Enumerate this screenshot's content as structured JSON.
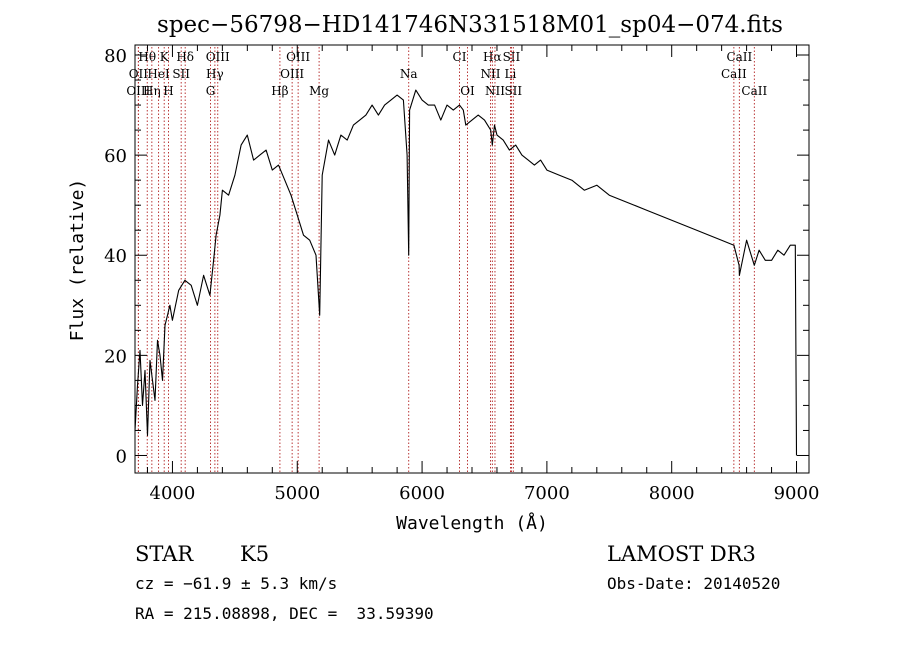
{
  "chart_data": {
    "type": "line",
    "title": "spec−56798−HD141746N331518M01_sp04−074.fits",
    "xlabel": "Wavelength (Å)",
    "ylabel": "Flux (relative)",
    "xlim": [
      3700,
      9100
    ],
    "ylim": [
      -3.5,
      82
    ],
    "xticks": [
      4000,
      5000,
      6000,
      7000,
      8000,
      9000
    ],
    "xtick_labels": [
      "4000",
      "5000",
      "6000",
      "7000",
      "8000",
      "9000"
    ],
    "yticks": [
      0,
      20,
      40,
      60,
      80
    ],
    "ytick_labels": [
      "0",
      "20",
      "40",
      "60",
      "80"
    ],
    "grid": false,
    "series": [
      {
        "color": "#000000",
        "x": [
          3700,
          3720,
          3740,
          3760,
          3780,
          3800,
          3820,
          3840,
          3860,
          3880,
          3900,
          3920,
          3940,
          3960,
          3980,
          4000,
          4050,
          4100,
          4150,
          4200,
          4250,
          4300,
          4330,
          4350,
          4380,
          4400,
          4450,
          4500,
          4550,
          4600,
          4650,
          4700,
          4750,
          4800,
          4850,
          4900,
          4950,
          5000,
          5050,
          5100,
          5150,
          5180,
          5200,
          5250,
          5300,
          5350,
          5400,
          5450,
          5500,
          5550,
          5600,
          5650,
          5700,
          5750,
          5800,
          5850,
          5880,
          5893,
          5900,
          5950,
          6000,
          6050,
          6100,
          6150,
          6200,
          6250,
          6300,
          6330,
          6350,
          6400,
          6450,
          6500,
          6550,
          6563,
          6580,
          6600,
          6650,
          6700,
          6750,
          6800,
          6850,
          6900,
          6950,
          7000,
          7100,
          7200,
          7300,
          7400,
          7500,
          7600,
          7700,
          7800,
          7900,
          8000,
          8100,
          8200,
          8300,
          8400,
          8498,
          8540,
          8542,
          8600,
          8662,
          8700,
          8750,
          8800,
          8850,
          8900,
          8950,
          8990,
          9000
        ],
        "y": [
          5,
          14,
          21,
          10,
          17,
          4,
          19,
          15,
          11,
          23,
          20,
          15,
          26,
          28,
          30,
          27,
          33,
          35,
          34,
          30,
          36,
          32,
          39,
          44,
          48,
          53,
          52,
          56,
          62,
          64,
          59,
          60,
          61,
          57,
          58,
          55,
          52,
          48,
          44,
          43,
          40,
          28,
          56,
          63,
          60,
          64,
          63,
          66,
          67,
          68,
          70,
          68,
          70,
          71,
          72,
          71,
          60,
          40,
          69,
          73,
          71,
          70,
          70,
          67,
          70,
          69,
          70,
          69,
          66,
          67,
          68,
          67,
          65,
          62,
          66,
          64,
          63,
          61,
          62,
          60,
          59,
          58,
          59,
          57,
          56,
          55,
          53,
          54,
          52,
          51,
          50,
          49,
          48,
          47,
          46,
          45,
          44,
          43,
          42,
          38,
          36,
          43,
          38,
          41,
          39,
          39,
          41,
          40,
          42,
          42,
          0
        ]
      }
    ],
    "line_markers": [
      {
        "label": "Hθ",
        "x": 3798,
        "row": 0
      },
      {
        "label": "Hη",
        "x": 3835,
        "row": 2
      },
      {
        "label": "OII",
        "x": 3727,
        "row": 1
      },
      {
        "label": "OIII",
        "x": 3727,
        "row": 2
      },
      {
        "label": "HeI",
        "x": 3889,
        "row": 1
      },
      {
        "label": "K",
        "x": 3934,
        "row": 0
      },
      {
        "label": "H",
        "x": 3968,
        "row": 2
      },
      {
        "label": "SII",
        "x": 4070,
        "row": 1
      },
      {
        "label": "Hδ",
        "x": 4102,
        "row": 0
      },
      {
        "label": "OIII",
        "x": 4363,
        "row": 0
      },
      {
        "label": "Hγ",
        "x": 4340,
        "row": 1
      },
      {
        "label": "G",
        "x": 4305,
        "row": 2
      },
      {
        "label": "Hβ",
        "x": 4861,
        "row": 2
      },
      {
        "label": "OIII",
        "x": 5007,
        "row": 0
      },
      {
        "label": "OIII",
        "x": 4959,
        "row": 1
      },
      {
        "label": "Mg",
        "x": 5175,
        "row": 2
      },
      {
        "label": "Na",
        "x": 5893,
        "row": 1
      },
      {
        "label": "CI",
        "x": 6300,
        "row": 0
      },
      {
        "label": "OI",
        "x": 6364,
        "row": 2
      },
      {
        "label": "Hα",
        "x": 6563,
        "row": 0
      },
      {
        "label": "NII",
        "x": 6548,
        "row": 1
      },
      {
        "label": "NII",
        "x": 6584,
        "row": 2
      },
      {
        "label": "SII",
        "x": 6716,
        "row": 0
      },
      {
        "label": "Li",
        "x": 6708,
        "row": 1
      },
      {
        "label": "SII",
        "x": 6731,
        "row": 2
      },
      {
        "label": "CaII",
        "x": 8542,
        "row": 0
      },
      {
        "label": "CaII",
        "x": 8498,
        "row": 1
      },
      {
        "label": "CaII",
        "x": 8662,
        "row": 2
      }
    ]
  },
  "info": {
    "object_class": "STAR",
    "subclass": "K5",
    "cz": "cz = −61.9 ± 5.3 km/s",
    "radec": "RA = 215.08898, DEC =  33.59390",
    "survey": "LAMOST DR3",
    "obs_date": "Obs-Date: 20140520"
  }
}
